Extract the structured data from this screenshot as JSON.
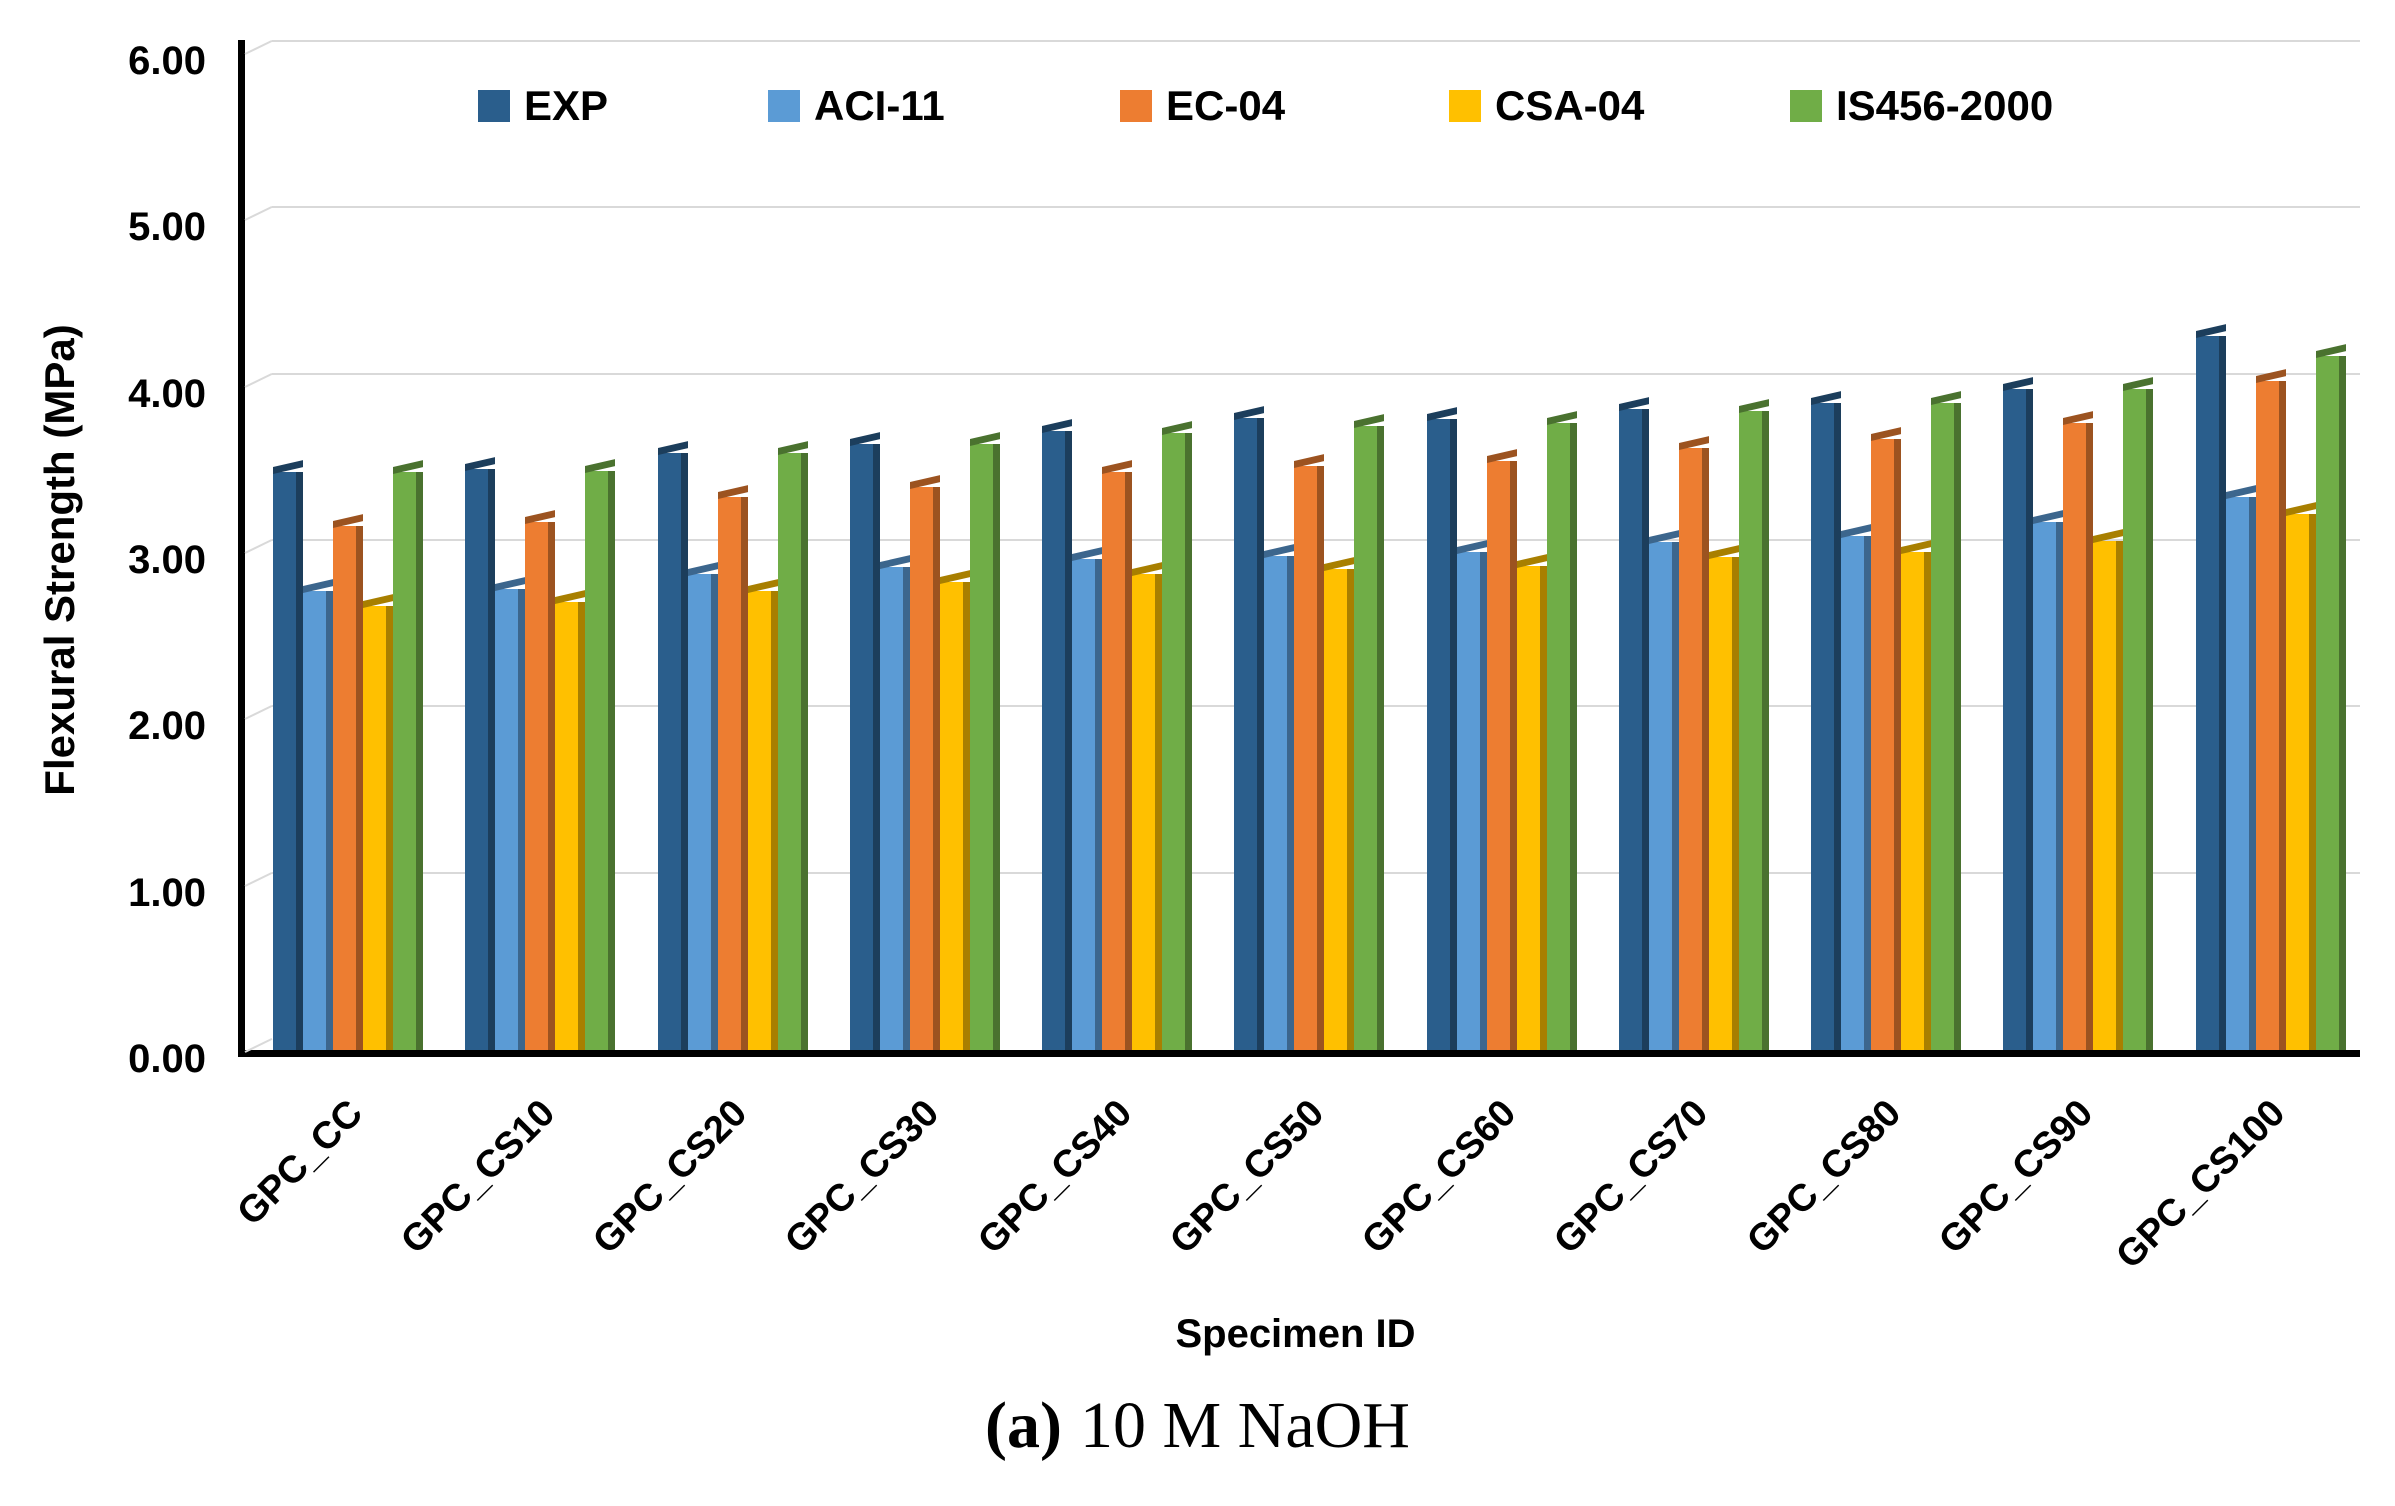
{
  "caption": {
    "prefix": "(a)",
    "text": "10 M NaOH"
  },
  "chart_data": {
    "type": "bar",
    "title": "",
    "xlabel": "Specimen ID",
    "ylabel": "Flexural Strength (MPa)",
    "ylim": [
      0,
      6
    ],
    "ytick_step": 1,
    "ytick_labels": [
      "0.00",
      "1.00",
      "2.00",
      "3.00",
      "4.00",
      "5.00",
      "6.00"
    ],
    "grid": true,
    "legend_position": "top-inside",
    "grid_color": "#D9D9D9",
    "axis_color": "#000000",
    "categories": [
      "GPC_CC",
      "GPC_CS10",
      "GPC_CS20",
      "GPC_CS30",
      "GPC_CS40",
      "GPC_CS50",
      "GPC_CS60",
      "GPC_CS70",
      "GPC_CS80",
      "GPC_CS90",
      "GPC_CS100"
    ],
    "series": [
      {
        "name": "EXP",
        "color": "#2A5E8C",
        "values": [
          3.4,
          3.42,
          3.52,
          3.57,
          3.65,
          3.73,
          3.72,
          3.78,
          3.82,
          3.9,
          4.22
        ]
      },
      {
        "name": "ACI-11",
        "color": "#5B9BD5",
        "values": [
          2.69,
          2.7,
          2.79,
          2.83,
          2.88,
          2.9,
          2.92,
          2.98,
          3.02,
          3.1,
          3.25
        ]
      },
      {
        "name": "EC-04",
        "color": "#ED7D31",
        "values": [
          3.08,
          3.1,
          3.25,
          3.31,
          3.4,
          3.44,
          3.47,
          3.55,
          3.6,
          3.7,
          3.95
        ]
      },
      {
        "name": "CSA-04",
        "color": "#FFC000",
        "values": [
          2.6,
          2.62,
          2.69,
          2.74,
          2.79,
          2.82,
          2.84,
          2.89,
          2.92,
          2.99,
          3.15
        ]
      },
      {
        "name": "IS456-2000",
        "color": "#70AD47",
        "values": [
          3.4,
          3.41,
          3.52,
          3.57,
          3.64,
          3.68,
          3.7,
          3.77,
          3.82,
          3.9,
          4.1
        ]
      }
    ]
  }
}
